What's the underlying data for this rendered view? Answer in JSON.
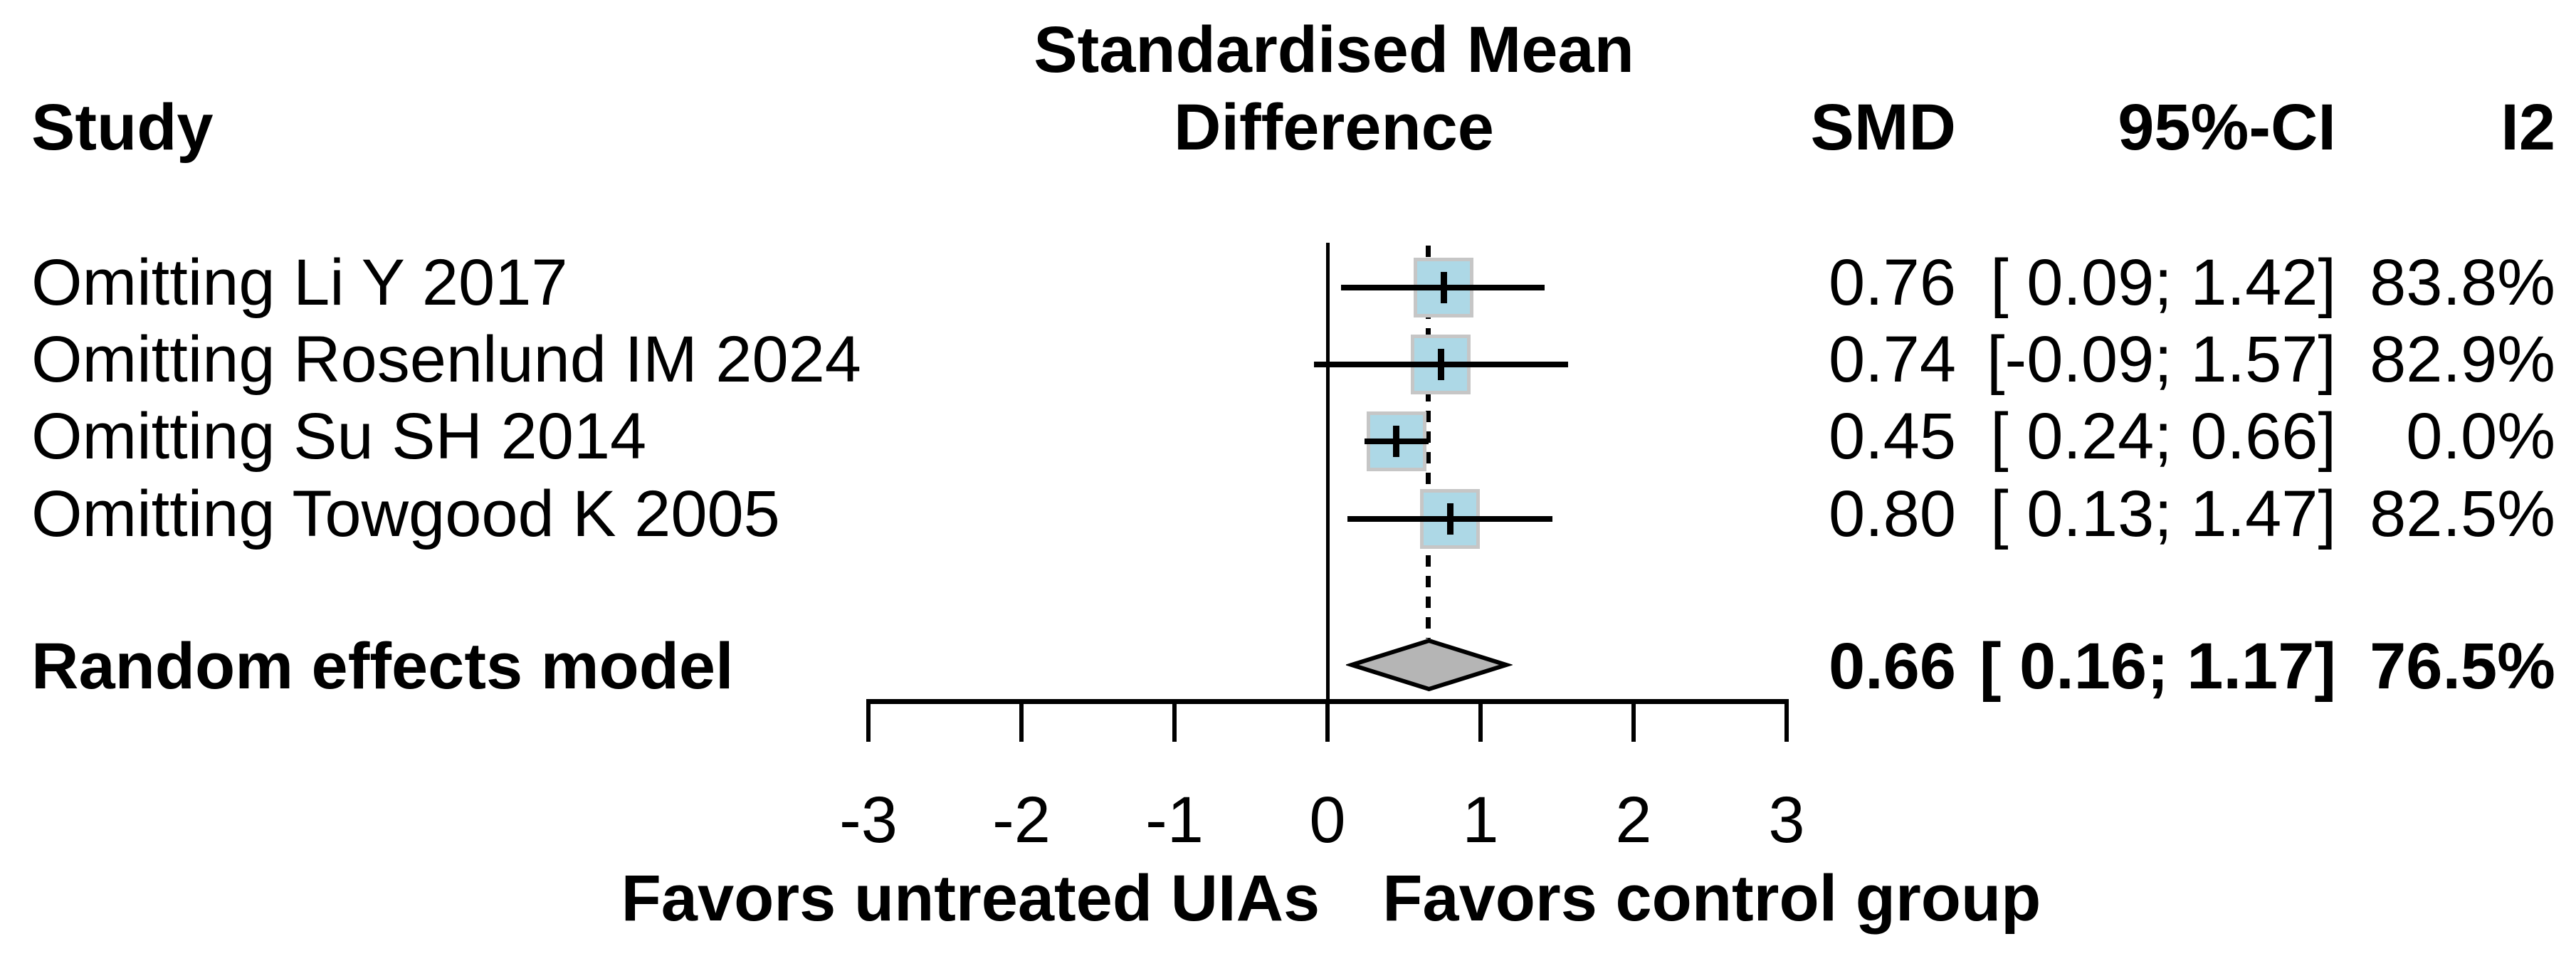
{
  "header": {
    "study": "Study",
    "effect_title_line1": "Standardised Mean",
    "effect_title_line2": "Difference",
    "smd": "SMD",
    "ci": "95%-CI",
    "i2": "I2"
  },
  "rows": [
    {
      "label": "Omitting Li Y 2017",
      "smd": "0.76",
      "ci": "[ 0.09; 1.42]",
      "i2": "83.8%"
    },
    {
      "label": "Omitting Rosenlund IM 2024",
      "smd": "0.74",
      "ci": "[-0.09; 1.57]",
      "i2": "82.9%"
    },
    {
      "label": "Omitting Su SH 2014",
      "smd": "0.45",
      "ci": "[ 0.24; 0.66]",
      "i2": "0.0%"
    },
    {
      "label": "Omitting Towgood K 2005",
      "smd": "0.80",
      "ci": "[ 0.13; 1.47]",
      "i2": "82.5%"
    }
  ],
  "pooled": {
    "label": "Random effects model",
    "smd": "0.66",
    "ci": "[ 0.16; 1.17]",
    "i2": "76.5%"
  },
  "axis": {
    "left_label": "Favors untreated UIAs",
    "right_label": "Favors control group"
  },
  "chart_data": {
    "type": "forest",
    "title": "Standardised Mean Difference",
    "columns": [
      "Study",
      "SMD",
      "95%-CI",
      "I2"
    ],
    "x_axis": {
      "range": [
        -3,
        3
      ],
      "ticks": [
        -3,
        -2,
        -1,
        0,
        1,
        2,
        3
      ],
      "tick_labels": [
        "-3",
        "-2",
        "-1",
        "0",
        "1",
        "2",
        "3"
      ]
    },
    "studies": [
      {
        "label": "Omitting Li Y 2017",
        "smd": 0.76,
        "ci_low": 0.09,
        "ci_high": 1.42,
        "i2_pct": 83.8
      },
      {
        "label": "Omitting Rosenlund IM 2024",
        "smd": 0.74,
        "ci_low": -0.09,
        "ci_high": 1.57,
        "i2_pct": 82.9
      },
      {
        "label": "Omitting Su SH 2014",
        "smd": 0.45,
        "ci_low": 0.24,
        "ci_high": 0.66,
        "i2_pct": 0.0
      },
      {
        "label": "Omitting Towgood K 2005",
        "smd": 0.8,
        "ci_low": 0.13,
        "ci_high": 1.47,
        "i2_pct": 82.5
      }
    ],
    "pooled": {
      "label": "Random effects model",
      "smd": 0.66,
      "ci_low": 0.16,
      "ci_high": 1.17,
      "i2_pct": 76.5
    },
    "reference_line": 0,
    "pooled_dashed_line": 0.66,
    "footer_labels": {
      "left_of_null": "Favors untreated UIAs",
      "right_of_null": "Favors control group"
    },
    "colors": {
      "square_fill": "#ADD8E6",
      "square_border": "#C6C6C6",
      "diamond_fill": "#B5B5B5",
      "diamond_border": "#000000",
      "line": "#000000",
      "text": "#000000",
      "background": "#FFFFFF"
    }
  }
}
